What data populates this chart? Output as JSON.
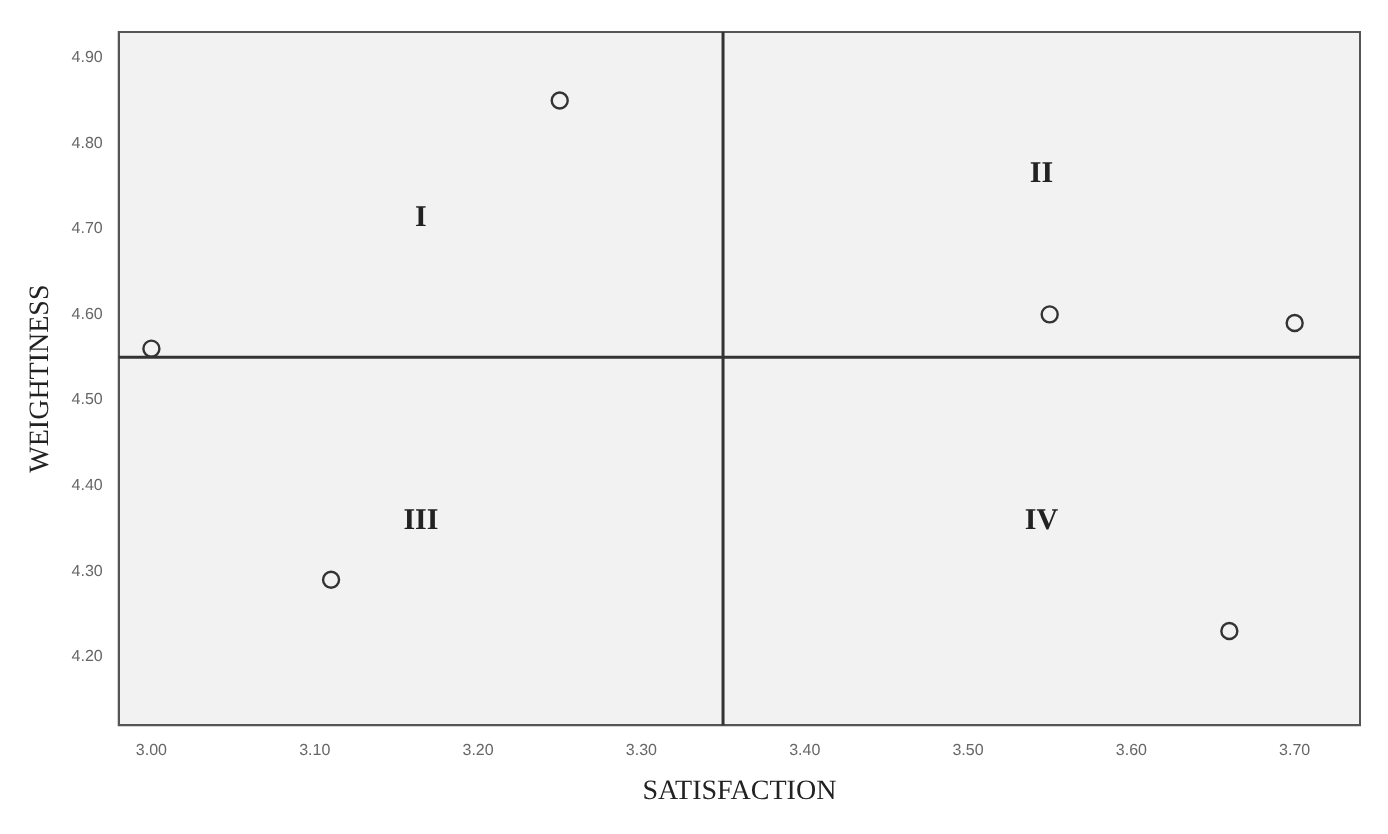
{
  "chart_data": {
    "type": "scatter",
    "xlabel": "SATISFACTION",
    "ylabel": "WEIGHTINESS",
    "x": [
      3.0,
      3.25,
      3.55,
      3.7,
      3.11,
      3.66
    ],
    "values": [
      4.56,
      4.85,
      4.6,
      4.59,
      4.29,
      4.23
    ],
    "color": "#333333",
    "marker": "circle",
    "legend": false,
    "grid": false,
    "xlim": [
      2.98,
      3.74
    ],
    "ylim": [
      4.12,
      4.93
    ],
    "xticks": [
      {
        "value": 3,
        "label": "3.00"
      },
      {
        "value": 3.1,
        "label": "3.10"
      },
      {
        "value": 3.2,
        "label": "3.20"
      },
      {
        "value": 3.3,
        "label": "3.30"
      },
      {
        "value": 3.4,
        "label": "3.40"
      },
      {
        "value": 3.5,
        "label": "3.50"
      },
      {
        "value": 3.6,
        "label": "3.60"
      },
      {
        "value": 3.7,
        "label": "3.70"
      }
    ],
    "yticks": [
      {
        "value": 4.2,
        "label": "4.20"
      },
      {
        "value": 4.3,
        "label": "4.30"
      },
      {
        "value": 4.4,
        "label": "4.40"
      },
      {
        "value": 4.5,
        "label": "4.50"
      },
      {
        "value": 4.6,
        "label": "4.60"
      },
      {
        "value": 4.7,
        "label": "4.70"
      },
      {
        "value": 4.8,
        "label": "4.80"
      },
      {
        "value": 4.9,
        "label": "4.90"
      }
    ],
    "ref_lines": [
      {
        "axis": "x",
        "value": 3.35,
        "color": "#333333"
      },
      {
        "axis": "y",
        "value": 4.55,
        "color": "#333333"
      }
    ],
    "annotations": [
      "I",
      "II",
      "III",
      "IV"
    ]
  }
}
